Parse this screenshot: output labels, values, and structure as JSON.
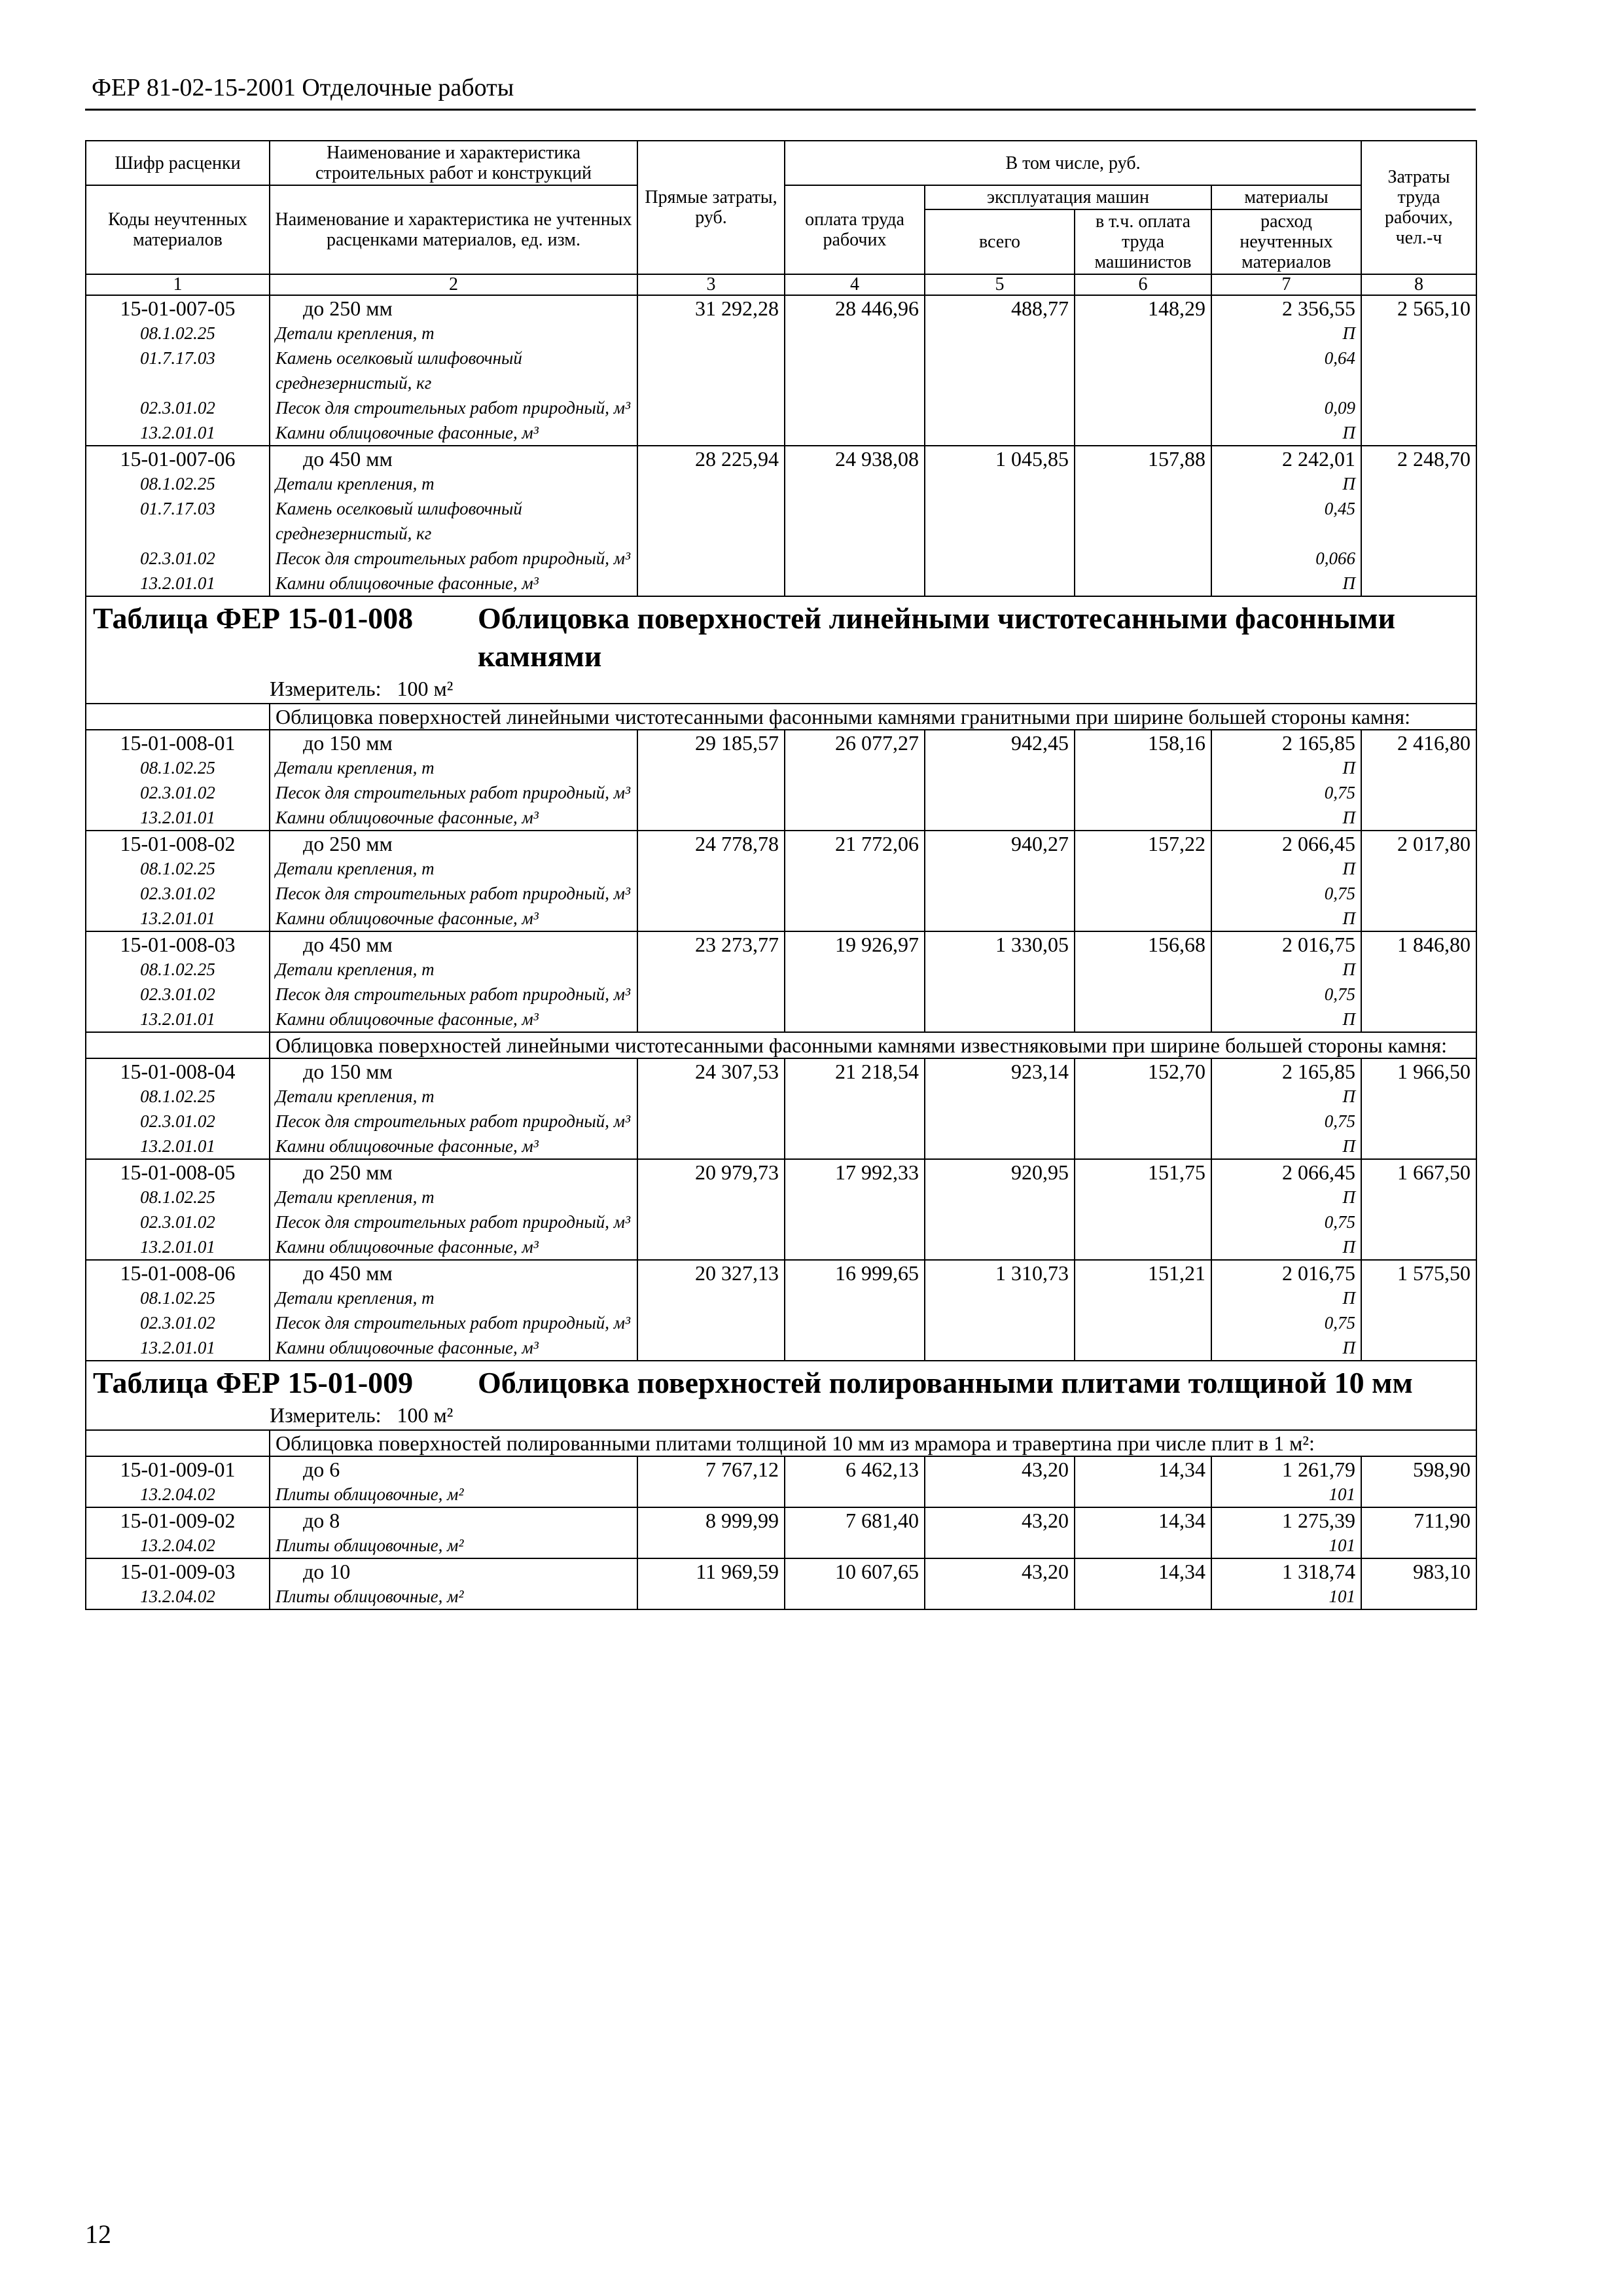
{
  "header": {
    "title": "ФЕР 81-02-15-2001 Отделочные работы"
  },
  "table": {
    "head": {
      "code": "Шифр расценки",
      "name": "Наименование и характеристика строительных работ и конструкций",
      "code2": "Коды неучтенных материалов",
      "name2": "Наименование и характеристика не учтенных расценками материалов, ед. изм.",
      "direct": "Прямые затраты, руб.",
      "incl": "В том числе, руб.",
      "labor": "оплата труда рабочих",
      "machines": "эксплуатация машин",
      "total": "всего",
      "machlabor": "в т.ч. оплата труда машинистов",
      "materials": "материалы",
      "consumption": "расход неучтенных материалов",
      "hours": "Затраты труда рабочих, чел.-ч",
      "numbers": [
        "1",
        "2",
        "3",
        "4",
        "5",
        "6",
        "7",
        "8"
      ]
    },
    "rows": [
      {
        "code": "15-01-007-05",
        "name": "до 250 мм",
        "values": [
          "31 292,28",
          "28 446,96",
          "488,77",
          "148,29",
          "2 356,55",
          "2 565,10"
        ],
        "materials": [
          {
            "code": "08.1.02.25",
            "name": "Детали крепления, т",
            "value": "П"
          },
          {
            "code": "01.7.17.03",
            "name": "Камень оселковый шлифовочный среднезернистый, кг",
            "value": "0,64"
          },
          {
            "code": "02.3.01.02",
            "name": "Песок для строительных работ природный, м³",
            "value": "0,09"
          },
          {
            "code": "13.2.01.01",
            "name": "Камни облицовочные фасонные, м³",
            "value": "П"
          }
        ]
      },
      {
        "code": "15-01-007-06",
        "name": "до 450 мм",
        "values": [
          "28 225,94",
          "24 938,08",
          "1 045,85",
          "157,88",
          "2 242,01",
          "2 248,70"
        ],
        "materials": [
          {
            "code": "08.1.02.25",
            "name": "Детали крепления, т",
            "value": "П"
          },
          {
            "code": "01.7.17.03",
            "name": "Камень оселковый шлифовочный среднезернистый, кг",
            "value": "0,45"
          },
          {
            "code": "02.3.01.02",
            "name": "Песок для строительных работ природный, м³",
            "value": "0,066"
          },
          {
            "code": "13.2.01.01",
            "name": "Камни облицовочные фасонные, м³",
            "value": "П"
          }
        ]
      },
      {
        "table": "Таблица ФЕР 15-01-008",
        "title": "Облицовка поверхностей линейными чистотесанными фасонными камнями",
        "measure_label": "Измеритель:",
        "measure": "100 м²"
      },
      {
        "note": "Облицовка поверхностей линейными чистотесанными фасонными камнями гранитными при ширине большей стороны камня:"
      },
      {
        "code": "15-01-008-01",
        "name": "до 150 мм",
        "values": [
          "29 185,57",
          "26 077,27",
          "942,45",
          "158,16",
          "2 165,85",
          "2 416,80"
        ],
        "materials": [
          {
            "code": "08.1.02.25",
            "name": "Детали крепления, т",
            "value": "П"
          },
          {
            "code": "02.3.01.02",
            "name": "Песок для строительных работ природный, м³",
            "value": "0,75"
          },
          {
            "code": "13.2.01.01",
            "name": "Камни облицовочные фасонные, м³",
            "value": "П"
          }
        ]
      },
      {
        "code": "15-01-008-02",
        "name": "до 250 мм",
        "values": [
          "24 778,78",
          "21 772,06",
          "940,27",
          "157,22",
          "2 066,45",
          "2 017,80"
        ],
        "materials": [
          {
            "code": "08.1.02.25",
            "name": "Детали крепления, т",
            "value": "П"
          },
          {
            "code": "02.3.01.02",
            "name": "Песок для строительных работ природный, м³",
            "value": "0,75"
          },
          {
            "code": "13.2.01.01",
            "name": "Камни облицовочные фасонные, м³",
            "value": "П"
          }
        ]
      },
      {
        "code": "15-01-008-03",
        "name": "до 450 мм",
        "values": [
          "23 273,77",
          "19 926,97",
          "1 330,05",
          "156,68",
          "2 016,75",
          "1 846,80"
        ],
        "materials": [
          {
            "code": "08.1.02.25",
            "name": "Детали крепления, т",
            "value": "П"
          },
          {
            "code": "02.3.01.02",
            "name": "Песок для строительных работ природный, м³",
            "value": "0,75"
          },
          {
            "code": "13.2.01.01",
            "name": "Камни облицовочные фасонные, м³",
            "value": "П"
          }
        ]
      },
      {
        "note": "Облицовка поверхностей линейными чистотесанными фасонными камнями известняковыми при ширине большей стороны камня:"
      },
      {
        "code": "15-01-008-04",
        "name": "до 150 мм",
        "values": [
          "24 307,53",
          "21 218,54",
          "923,14",
          "152,70",
          "2 165,85",
          "1 966,50"
        ],
        "materials": [
          {
            "code": "08.1.02.25",
            "name": "Детали крепления, т",
            "value": "П"
          },
          {
            "code": "02.3.01.02",
            "name": "Песок для строительных работ природный, м³",
            "value": "0,75"
          },
          {
            "code": "13.2.01.01",
            "name": "Камни облицовочные фасонные, м³",
            "value": "П"
          }
        ]
      },
      {
        "code": "15-01-008-05",
        "name": "до 250 мм",
        "values": [
          "20 979,73",
          "17 992,33",
          "920,95",
          "151,75",
          "2 066,45",
          "1 667,50"
        ],
        "materials": [
          {
            "code": "08.1.02.25",
            "name": "Детали крепления, т",
            "value": "П"
          },
          {
            "code": "02.3.01.02",
            "name": "Песок для строительных работ природный, м³",
            "value": "0,75"
          },
          {
            "code": "13.2.01.01",
            "name": "Камни облицовочные фасонные, м³",
            "value": "П"
          }
        ]
      },
      {
        "code": "15-01-008-06",
        "name": "до 450 мм",
        "values": [
          "20 327,13",
          "16 999,65",
          "1 310,73",
          "151,21",
          "2 016,75",
          "1 575,50"
        ],
        "materials": [
          {
            "code": "08.1.02.25",
            "name": "Детали крепления, т",
            "value": "П"
          },
          {
            "code": "02.3.01.02",
            "name": "Песок для строительных работ природный, м³",
            "value": "0,75"
          },
          {
            "code": "13.2.01.01",
            "name": "Камни облицовочные фасонные, м³",
            "value": "П"
          }
        ]
      },
      {
        "table": "Таблица ФЕР 15-01-009",
        "title": "Облицовка поверхностей полированными плитами толщиной 10 мм",
        "measure_label": "Измеритель:",
        "measure": "100 м²"
      },
      {
        "note": "Облицовка поверхностей полированными плитами толщиной 10 мм из мрамора и травертина при числе плит в 1 м²:"
      },
      {
        "code": "15-01-009-01",
        "name": "до 6",
        "values": [
          "7 767,12",
          "6 462,13",
          "43,20",
          "14,34",
          "1 261,79",
          "598,90"
        ],
        "materials": [
          {
            "code": "13.2.04.02",
            "name": "Плиты облицовочные, м²",
            "value": "101"
          }
        ]
      },
      {
        "code": "15-01-009-02",
        "name": "до 8",
        "values": [
          "8 999,99",
          "7 681,40",
          "43,20",
          "14,34",
          "1 275,39",
          "711,90"
        ],
        "materials": [
          {
            "code": "13.2.04.02",
            "name": "Плиты облицовочные, м²",
            "value": "101"
          }
        ]
      },
      {
        "code": "15-01-009-03",
        "name": "до 10",
        "values": [
          "11 969,59",
          "10 607,65",
          "43,20",
          "14,34",
          "1 318,74",
          "983,10"
        ],
        "materials": [
          {
            "code": "13.2.04.02",
            "name": "Плиты облицовочные, м²",
            "value": "101"
          }
        ]
      }
    ]
  },
  "footer": {
    "page": "12"
  }
}
